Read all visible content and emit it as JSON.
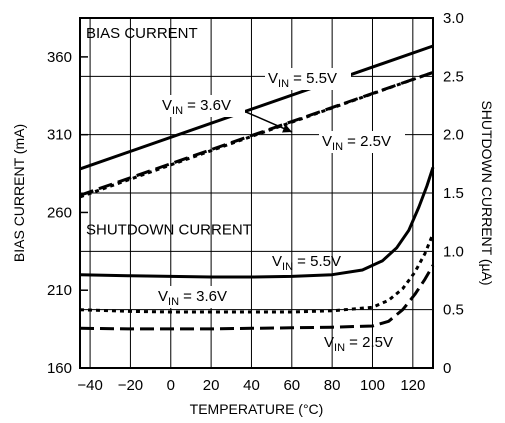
{
  "chart_data": {
    "type": "line",
    "title": "",
    "xlabel": "TEMPERATURE (°C)",
    "ylabel_left": "BIAS CURRENT (mA)",
    "ylabel_right": "SHUTDOWN CURRENT (µA)",
    "xlim": [
      -45,
      130
    ],
    "ylim_left": [
      160,
      385
    ],
    "ylim_right": [
      0,
      3.0
    ],
    "x_ticks": [
      -40,
      -20,
      0,
      20,
      40,
      60,
      80,
      100,
      120
    ],
    "y_ticks_left": [
      160,
      210,
      260,
      310,
      360
    ],
    "y_ticks_right": [
      0,
      0.5,
      1.0,
      1.5,
      2.0,
      2.5,
      3.0
    ],
    "y_tick_labels_right": [
      "0",
      "0.5",
      "1.0",
      "1.5",
      "2.0",
      "2.5",
      "3.0"
    ],
    "grid": true,
    "section_labels": {
      "bias": "BIAS CURRENT",
      "shutdown": "SHUTDOWN CURRENT"
    },
    "series": [
      {
        "name": "V_IN = 5.5V",
        "group": "bias",
        "axis": "left",
        "style": "solid",
        "x": [
          -45,
          130
        ],
        "y": [
          288,
          367
        ]
      },
      {
        "name": "V_IN = 3.6V",
        "group": "bias",
        "axis": "left",
        "style": "dotted",
        "x": [
          -45,
          130
        ],
        "y": [
          270,
          350
        ]
      },
      {
        "name": "V_IN = 2.5V",
        "group": "bias",
        "axis": "left",
        "style": "dashed",
        "x": [
          -45,
          130
        ],
        "y": [
          271,
          350
        ]
      },
      {
        "name": "V_IN = 5.5V",
        "group": "shutdown",
        "axis": "right",
        "style": "solid",
        "x": [
          -45,
          -20,
          0,
          20,
          40,
          60,
          80,
          95,
          105,
          112,
          118,
          123,
          127,
          130
        ],
        "y": [
          0.8,
          0.79,
          0.785,
          0.78,
          0.78,
          0.785,
          0.8,
          0.84,
          0.92,
          1.03,
          1.18,
          1.38,
          1.56,
          1.72
        ]
      },
      {
        "name": "V_IN = 3.6V",
        "group": "shutdown",
        "axis": "right",
        "style": "dotted",
        "x": [
          -45,
          -20,
          0,
          20,
          40,
          60,
          80,
          100,
          108,
          115,
          121,
          126,
          130
        ],
        "y": [
          0.5,
          0.485,
          0.48,
          0.48,
          0.48,
          0.48,
          0.49,
          0.52,
          0.58,
          0.68,
          0.82,
          0.98,
          1.15
        ]
      },
      {
        "name": "V_IN = 2.5V",
        "group": "shutdown",
        "axis": "right",
        "style": "dashed",
        "x": [
          -45,
          -20,
          0,
          20,
          40,
          60,
          80,
          100,
          108,
          115,
          121,
          126,
          130
        ],
        "y": [
          0.34,
          0.335,
          0.335,
          0.335,
          0.34,
          0.345,
          0.35,
          0.36,
          0.4,
          0.5,
          0.63,
          0.76,
          0.88
        ]
      }
    ],
    "annotations": [
      {
        "v": "V",
        "sub": "IN",
        "val": " = 5.5V",
        "group": "bias"
      },
      {
        "v": "V",
        "sub": "IN",
        "val": " = 3.6V",
        "group": "bias"
      },
      {
        "v": "V",
        "sub": "IN",
        "val": " = 2.5V",
        "group": "bias"
      },
      {
        "v": "V",
        "sub": "IN",
        "val": " = 5.5V",
        "group": "shutdown"
      },
      {
        "v": "V",
        "sub": "IN",
        "val": " = 3.6V",
        "group": "shutdown"
      },
      {
        "v": "V",
        "sub": "IN",
        "val": " = 2.5V",
        "group": "shutdown"
      }
    ]
  }
}
